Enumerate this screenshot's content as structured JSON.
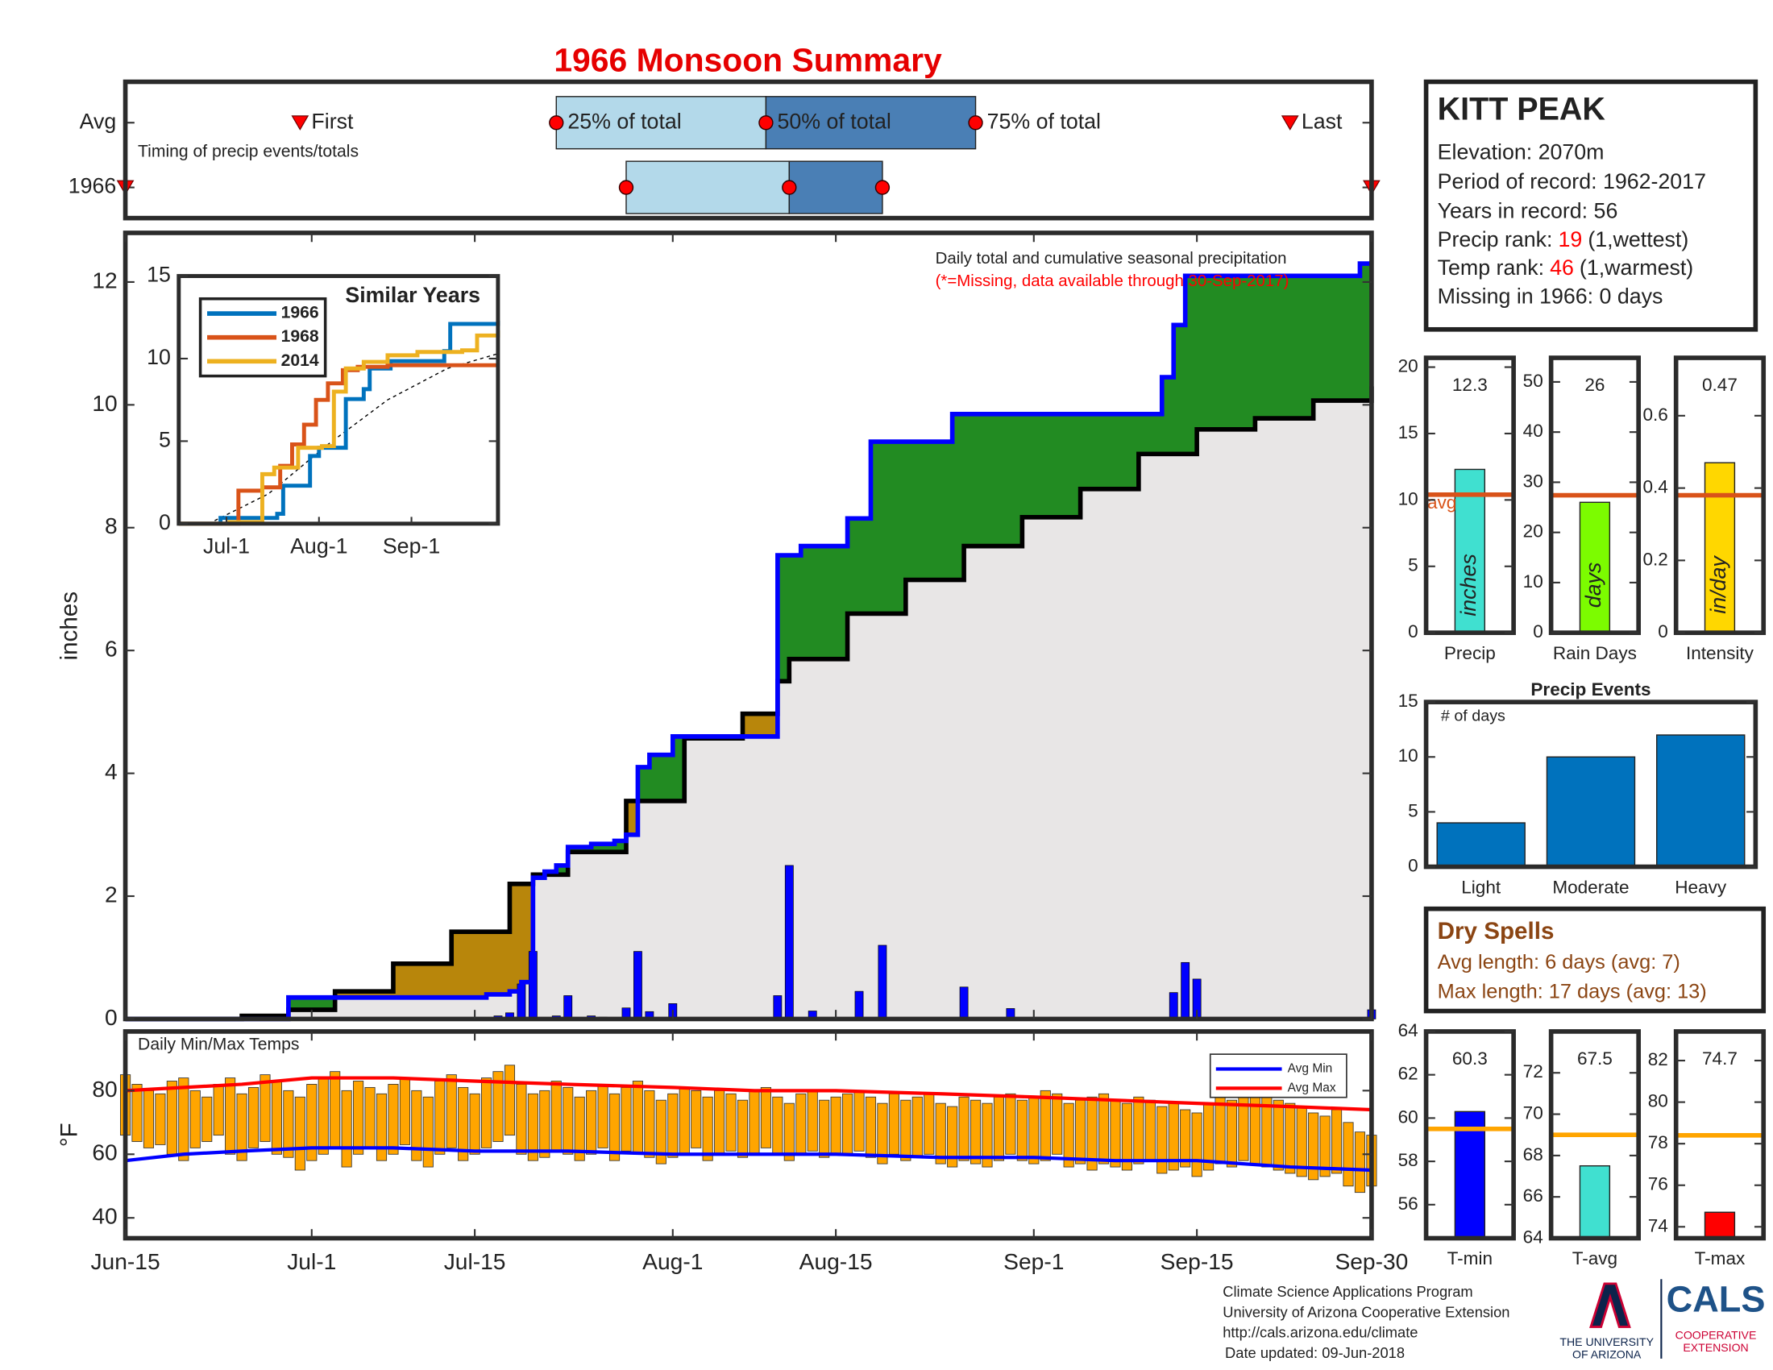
{
  "station": {
    "name": "KITT PEAK",
    "elevation": "Elevation: 2070m",
    "period": "Period of record: 1962-2017",
    "years": "Years in record: 56",
    "precip_rank": {
      "label": "Precip rank:",
      "value": 19,
      "note": "(1,wettest)"
    },
    "temp_rank": {
      "label": "Temp rank:",
      "value": 46,
      "note": "(1,warmest)"
    },
    "missing": "Missing in 1966: 0 days"
  },
  "dry_spells": {
    "title": "Dry Spells",
    "lines": [
      "Avg length: 6 days (avg: 7)",
      "Max length: 17 days (avg: 13)"
    ],
    "color": "#8b4513"
  },
  "footer": [
    "Climate Science Applications Program",
    "University of Arizona Cooperative Extension",
    "http://cals.arizona.edu/climate",
    "Date updated: 09-Jun-2018"
  ],
  "logos": {
    "ua": [
      "THE UNIVERSITY",
      "OF ARIZONA"
    ],
    "cals": "CALS",
    "ext": [
      "COOPERATIVE",
      "EXTENSION"
    ]
  },
  "chart_data": [
    {
      "type": "step_area",
      "title": "1966 Monsoon Summary",
      "annotation": "Daily total and cumulative seasonal precipitation",
      "note": "(*=Missing, data available through 30-Sep-2017)",
      "ylabel": "inches",
      "xlim": [
        0,
        107
      ],
      "ylim": [
        0,
        12.8
      ],
      "yticks": [
        0,
        2,
        4,
        6,
        8,
        10,
        12
      ],
      "daily": {
        "color": "#0000ff",
        "x": [
          32,
          33,
          34,
          35,
          37,
          38,
          40,
          41,
          43,
          44,
          45,
          47,
          56,
          57,
          59,
          63,
          65,
          72,
          76,
          90,
          91,
          92,
          107
        ],
        "values": [
          0.05,
          0.1,
          0.57,
          1.1,
          0.05,
          0.38,
          0.05,
          0.03,
          0.18,
          1.1,
          0.12,
          0.25,
          0.38,
          2.5,
          0.13,
          0.45,
          1.2,
          0.52,
          0.17,
          0.43,
          0.92,
          0.65,
          0.15
        ]
      },
      "cumulative": {
        "color": "#0000ff",
        "x": [
          0,
          14,
          31,
          33,
          34,
          35,
          36,
          37,
          38,
          40,
          42,
          43,
          44,
          45,
          47,
          56,
          58,
          62,
          64,
          71,
          89,
          90,
          91,
          106
        ],
        "values": [
          0,
          0.35,
          0.4,
          0.45,
          0.6,
          2.3,
          2.4,
          2.5,
          2.8,
          2.85,
          2.9,
          3.0,
          4.1,
          4.3,
          4.6,
          7.55,
          7.7,
          8.15,
          9.4,
          9.85,
          10.45,
          11.3,
          12.1,
          12.3
        ]
      },
      "average": {
        "color": "#000000",
        "x": [
          0,
          10,
          14,
          18,
          23,
          28,
          33,
          35,
          38,
          43,
          48,
          53,
          56,
          57,
          62,
          67,
          72,
          77,
          82,
          87,
          92,
          97,
          102,
          107
        ],
        "values": [
          0,
          0.05,
          0.15,
          0.45,
          0.9,
          1.42,
          2.2,
          2.35,
          2.72,
          3.55,
          4.57,
          4.97,
          5.5,
          5.86,
          6.6,
          7.15,
          7.7,
          8.17,
          8.63,
          9.2,
          9.6,
          9.78,
          10.07,
          10.3
        ]
      },
      "above_color": "#228b22",
      "below_color": "#b8860b",
      "base_color": "#e8e6e6"
    },
    {
      "type": "timing",
      "note": "Timing of precip events/totals",
      "labels": [
        "First",
        "25% of total",
        "50% of total",
        "75% of total",
        "Last"
      ],
      "xlim": [
        0,
        107
      ],
      "light_color": "#b3d9ea",
      "dark_color": "#4a7fb5",
      "marker_color": "#ff0000",
      "series": [
        {
          "name": "Avg",
          "values": [
            15,
            37,
            55,
            73,
            100
          ]
        },
        {
          "name": "1966",
          "values": [
            0,
            43,
            57,
            65,
            107
          ]
        }
      ]
    },
    {
      "type": "range_bar",
      "title": "Daily Min/Max Temps",
      "ylabel": "°F",
      "xlim": [
        0,
        107
      ],
      "xticks": [
        {
          "value": 0,
          "label": "Jun-15"
        },
        {
          "value": 16,
          "label": "Jul-1"
        },
        {
          "value": 30,
          "label": "Jul-15"
        },
        {
          "value": 47,
          "label": "Aug-1"
        },
        {
          "value": 61,
          "label": "Aug-15"
        },
        {
          "value": 78,
          "label": "Sep-1"
        },
        {
          "value": 92,
          "label": "Sep-15"
        },
        {
          "value": 107,
          "label": "Sep-30"
        }
      ],
      "ylim": [
        33.6,
        98.6
      ],
      "yticks": [
        40,
        60,
        80
      ],
      "color": "#ffa500",
      "max": [
        85,
        82,
        80,
        79,
        83,
        84,
        80,
        78,
        82,
        84,
        79,
        81,
        85,
        83,
        80,
        78,
        82,
        84,
        86,
        80,
        83,
        81,
        79,
        82,
        84,
        80,
        78,
        83,
        85,
        81,
        79,
        84,
        86,
        88,
        82,
        79,
        80,
        83,
        81,
        78,
        80,
        82,
        79,
        81,
        83,
        80,
        77,
        79,
        81,
        80,
        78,
        80,
        79,
        77,
        80,
        81,
        78,
        76,
        79,
        80,
        77,
        78,
        79,
        80,
        78,
        76,
        79,
        77,
        78,
        79,
        76,
        75,
        78,
        77,
        76,
        78,
        79,
        77,
        78,
        80,
        79,
        76,
        77,
        78,
        79,
        77,
        76,
        78,
        77,
        75,
        76,
        74,
        73,
        76,
        78,
        77,
        79,
        80,
        78,
        77,
        76,
        75,
        73,
        72,
        74,
        70,
        67,
        66
      ],
      "min": [
        66,
        64,
        62,
        63,
        60,
        58,
        62,
        64,
        66,
        60,
        58,
        62,
        64,
        60,
        59,
        55,
        58,
        60,
        62,
        56,
        60,
        62,
        58,
        60,
        63,
        58,
        56,
        60,
        62,
        58,
        60,
        62,
        64,
        66,
        60,
        58,
        59,
        61,
        60,
        58,
        60,
        62,
        58,
        61,
        60,
        59,
        57,
        59,
        60,
        62,
        58,
        60,
        61,
        59,
        60,
        62,
        60,
        58,
        60,
        61,
        59,
        60,
        60,
        61,
        59,
        57,
        60,
        58,
        59,
        60,
        57,
        56,
        58,
        57,
        56,
        58,
        60,
        58,
        57,
        58,
        60,
        56,
        57,
        55,
        57,
        56,
        55,
        57,
        58,
        54,
        55,
        56,
        53,
        55,
        57,
        56,
        58,
        57,
        56,
        55,
        54,
        53,
        52,
        53,
        54,
        50,
        48,
        50
      ],
      "series": [
        {
          "name": "Avg Min",
          "color": "#0000ff",
          "x": [
            0,
            5,
            10,
            16,
            23,
            30,
            38,
            47,
            54,
            61,
            70,
            78,
            85,
            92,
            100,
            107
          ],
          "values": [
            58,
            60,
            61,
            62,
            62,
            61,
            61,
            60,
            60,
            60,
            59,
            59,
            58,
            58,
            56,
            55
          ]
        },
        {
          "name": "Avg Max",
          "color": "#ff0000",
          "x": [
            0,
            5,
            10,
            16,
            23,
            30,
            38,
            47,
            54,
            61,
            70,
            78,
            85,
            92,
            100,
            107
          ],
          "values": [
            80,
            81,
            82,
            84,
            84,
            83,
            82,
            81,
            80,
            80,
            79,
            78,
            77,
            76,
            75,
            74
          ]
        }
      ]
    },
    {
      "type": "line",
      "title": "Similar Years",
      "xlim": [
        0,
        107
      ],
      "xticks": [
        {
          "value": 16,
          "label": "Jul-1"
        },
        {
          "value": 47,
          "label": "Aug-1"
        },
        {
          "value": 78,
          "label": "Sep-1"
        }
      ],
      "ylim": [
        0,
        15
      ],
      "yticks": [
        0,
        5,
        10,
        15
      ],
      "series": [
        {
          "name": "1966",
          "color": "#0072bd",
          "x": [
            0,
            14,
            33,
            35,
            44,
            47,
            56,
            62,
            64,
            71,
            89,
            91,
            107
          ],
          "values": [
            0,
            0.35,
            0.6,
            2.3,
            4.1,
            4.6,
            7.55,
            8.15,
            9.4,
            9.85,
            10.45,
            12.1,
            12.3
          ]
        },
        {
          "name": "1968",
          "color": "#d95319",
          "x": [
            0,
            20,
            28,
            34,
            38,
            42,
            46,
            50,
            55,
            60,
            70,
            107
          ],
          "values": [
            0,
            2,
            2.2,
            3.5,
            4.8,
            6,
            7.5,
            8.5,
            9.3,
            9.5,
            9.6,
            9.6
          ]
        },
        {
          "name": "2014",
          "color": "#edb120",
          "x": [
            0,
            17,
            28,
            32,
            40,
            48,
            52,
            56,
            62,
            70,
            80,
            95,
            100,
            107
          ],
          "values": [
            0,
            0.1,
            3,
            3.4,
            4.6,
            4.7,
            8,
            9.4,
            9.8,
            10.2,
            10.4,
            10.5,
            11.4,
            11.7
          ]
        }
      ],
      "average": {
        "color": "#000000",
        "x": [
          10,
          30,
          50,
          70,
          90,
          107
        ],
        "values": [
          0,
          1.8,
          4.8,
          7.5,
          9.4,
          10.3
        ]
      }
    },
    {
      "type": "bar",
      "categories": [
        "Precip"
      ],
      "values": [
        12.3
      ],
      "avg": 10.4,
      "avg_label": "avg",
      "unit": "inches",
      "ylim": [
        0,
        20.7
      ],
      "yticks": [
        0,
        5,
        10,
        15,
        20
      ],
      "color": "#40e0d0",
      "avg_color": "#d95319"
    },
    {
      "type": "bar",
      "categories": [
        "Rain Days"
      ],
      "values": [
        26
      ],
      "avg": 27.4,
      "unit": "days",
      "ylim": [
        0,
        54.8
      ],
      "yticks": [
        0,
        10,
        20,
        30,
        40,
        50
      ],
      "color": "#7cfc00",
      "avg_color": "#d95319"
    },
    {
      "type": "bar",
      "categories": [
        "Intensity"
      ],
      "values": [
        0.47
      ],
      "avg": 0.38,
      "unit": "in/day",
      "ylim": [
        0,
        0.76
      ],
      "yticks": [
        0,
        0.2,
        0.4,
        0.6
      ],
      "color": "#ffd700",
      "avg_color": "#d95319"
    },
    {
      "type": "bar",
      "title": "Precip Events",
      "note": "# of days",
      "categories": [
        "Light",
        "Moderate",
        "Heavy"
      ],
      "values": [
        4,
        10,
        12
      ],
      "ylim": [
        0,
        15
      ],
      "yticks": [
        0,
        5,
        10,
        15
      ],
      "color": "#0072bd"
    },
    {
      "type": "bar",
      "categories": [
        "T-min"
      ],
      "values": [
        60.3
      ],
      "avg": 59.5,
      "ylim": [
        54.45,
        64
      ],
      "yticks": [
        56,
        58,
        60,
        62,
        64
      ],
      "color": "#0000ff",
      "avg_color": "#ffa500"
    },
    {
      "type": "bar",
      "categories": [
        "T-avg"
      ],
      "values": [
        67.5
      ],
      "avg": 69.0,
      "ylim": [
        64,
        74
      ],
      "yticks": [
        64,
        66,
        68,
        70,
        72
      ],
      "color": "#40e0d0",
      "avg_color": "#ffa500"
    },
    {
      "type": "bar",
      "categories": [
        "T-max"
      ],
      "values": [
        74.7
      ],
      "avg": 78.4,
      "ylim": [
        73.45,
        83.4
      ],
      "yticks": [
        74,
        76,
        78,
        80,
        82
      ],
      "color": "#ff0000",
      "avg_color": "#ffa500"
    }
  ]
}
